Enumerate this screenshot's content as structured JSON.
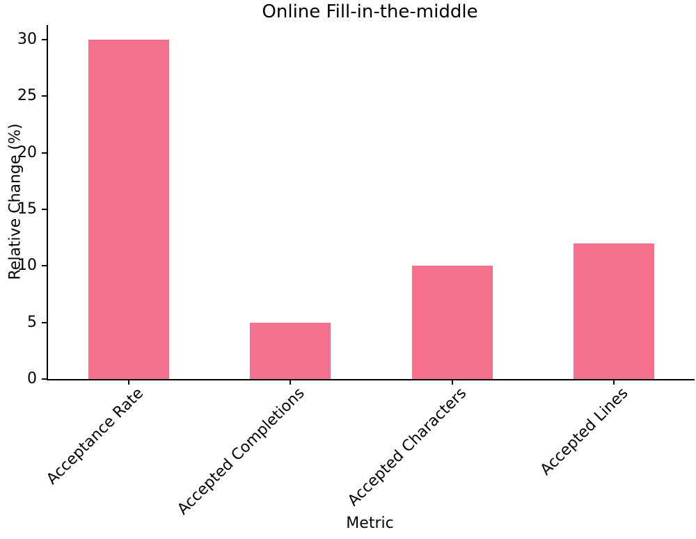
{
  "chart_data": {
    "type": "bar",
    "title": "Online Fill-in-the-middle",
    "xlabel": "Metric",
    "ylabel": "Relative Change (%)",
    "categories": [
      "Acceptance Rate",
      "Accepted Completions",
      "Accepted Characters",
      "Accepted Lines"
    ],
    "values": [
      30,
      5,
      10,
      12
    ],
    "y_ticks": [
      0,
      5,
      10,
      15,
      20,
      25,
      30
    ],
    "ylim": [
      0,
      31.3
    ],
    "grid": false,
    "legend": null,
    "colors": {
      "bar": "#f5708c",
      "text": "#000000",
      "spine": "#000000"
    }
  }
}
